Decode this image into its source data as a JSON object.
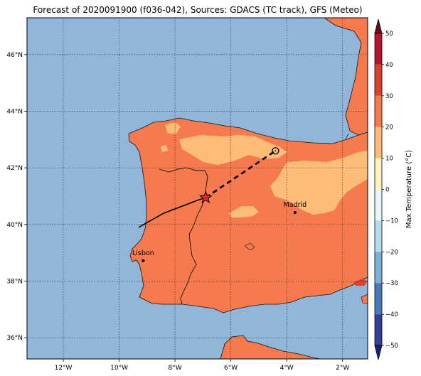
{
  "title": "Forecast of 2020091900 (f036-042), Sources: GDACS (TC track), GFS (Meteo)",
  "colorbar": {
    "label": "Max Temperature (°C)",
    "ticks": [
      "50",
      "40",
      "30",
      "20",
      "10",
      "0",
      "−10",
      "−20",
      "−30",
      "−40",
      "−50"
    ],
    "colors": [
      "#6e0a1e",
      "#b11a2a",
      "#d8412f",
      "#f57a4e",
      "#fdbd78",
      "#fff3c0",
      "#e7f6f9",
      "#b8dbe9",
      "#7eb0d3",
      "#4a7ab7",
      "#333f99",
      "#1b1f7a"
    ]
  },
  "axes": {
    "x_ticks": [
      "12°W",
      "10°W",
      "8°W",
      "6°W",
      "4°W",
      "2°W"
    ],
    "y_ticks": [
      "46°N",
      "44°N",
      "42°N",
      "40°N",
      "38°N",
      "36°N"
    ]
  },
  "chart_data": {
    "type": "map",
    "extent": {
      "lon_min": -13.3,
      "lon_max": -1.1,
      "lat_min": 35.25,
      "lat_max": 47.3
    },
    "grid": true,
    "cities": [
      {
        "name": "Madrid",
        "lon": -3.7,
        "lat": 40.42
      },
      {
        "name": "Lisbon",
        "lon": -9.14,
        "lat": 38.72
      }
    ],
    "track_past": [
      [
        -9.3,
        39.9
      ],
      [
        -8.4,
        40.4
      ],
      [
        -7.2,
        40.85
      ],
      [
        -6.9,
        40.95
      ]
    ],
    "track_forecast": [
      [
        -6.9,
        40.95
      ],
      [
        -4.4,
        42.6
      ]
    ],
    "current_position": {
      "lon": -6.9,
      "lat": 40.95
    },
    "forecast_position": {
      "lon": -4.4,
      "lat": 42.6
    },
    "colors": {
      "sea": "#92b5da",
      "warm": "#f57a4e",
      "cool": "#fdbd78",
      "hot": "#d8412f",
      "track": "#000000",
      "storm": "#e8262a"
    }
  }
}
